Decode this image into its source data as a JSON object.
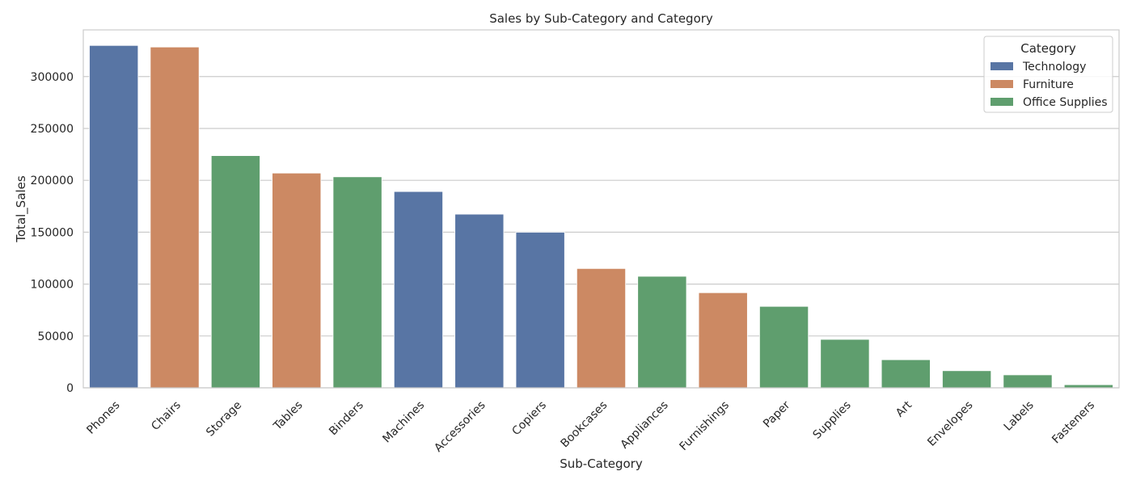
{
  "chart_data": {
    "type": "bar",
    "title": "Sales by Sub-Category and Category",
    "xlabel": "Sub-Category",
    "ylabel": "Total_Sales",
    "ylim": [
      0,
      345000
    ],
    "yticks": [
      0,
      50000,
      100000,
      150000,
      200000,
      250000,
      300000
    ],
    "grid": true,
    "legend": {
      "title": "Category",
      "placement": "top-right",
      "entries": [
        "Technology",
        "Furniture",
        "Office Supplies"
      ]
    },
    "colors": {
      "Technology": "#5875a4",
      "Furniture": "#cc8963",
      "Office Supplies": "#5f9e6e"
    },
    "categories": [
      "Phones",
      "Chairs",
      "Storage",
      "Tables",
      "Binders",
      "Machines",
      "Accessories",
      "Copiers",
      "Bookcases",
      "Appliances",
      "Furnishings",
      "Paper",
      "Supplies",
      "Art",
      "Envelopes",
      "Labels",
      "Fasteners"
    ],
    "bar_category": [
      "Technology",
      "Furniture",
      "Office Supplies",
      "Furniture",
      "Office Supplies",
      "Technology",
      "Technology",
      "Technology",
      "Furniture",
      "Office Supplies",
      "Furniture",
      "Office Supplies",
      "Office Supplies",
      "Office Supplies",
      "Office Supplies",
      "Office Supplies",
      "Office Supplies"
    ],
    "values": [
      330000,
      328500,
      223800,
      207000,
      203400,
      189200,
      167400,
      150000,
      115000,
      107500,
      91700,
      78500,
      46700,
      27100,
      16500,
      12500,
      3000
    ]
  }
}
